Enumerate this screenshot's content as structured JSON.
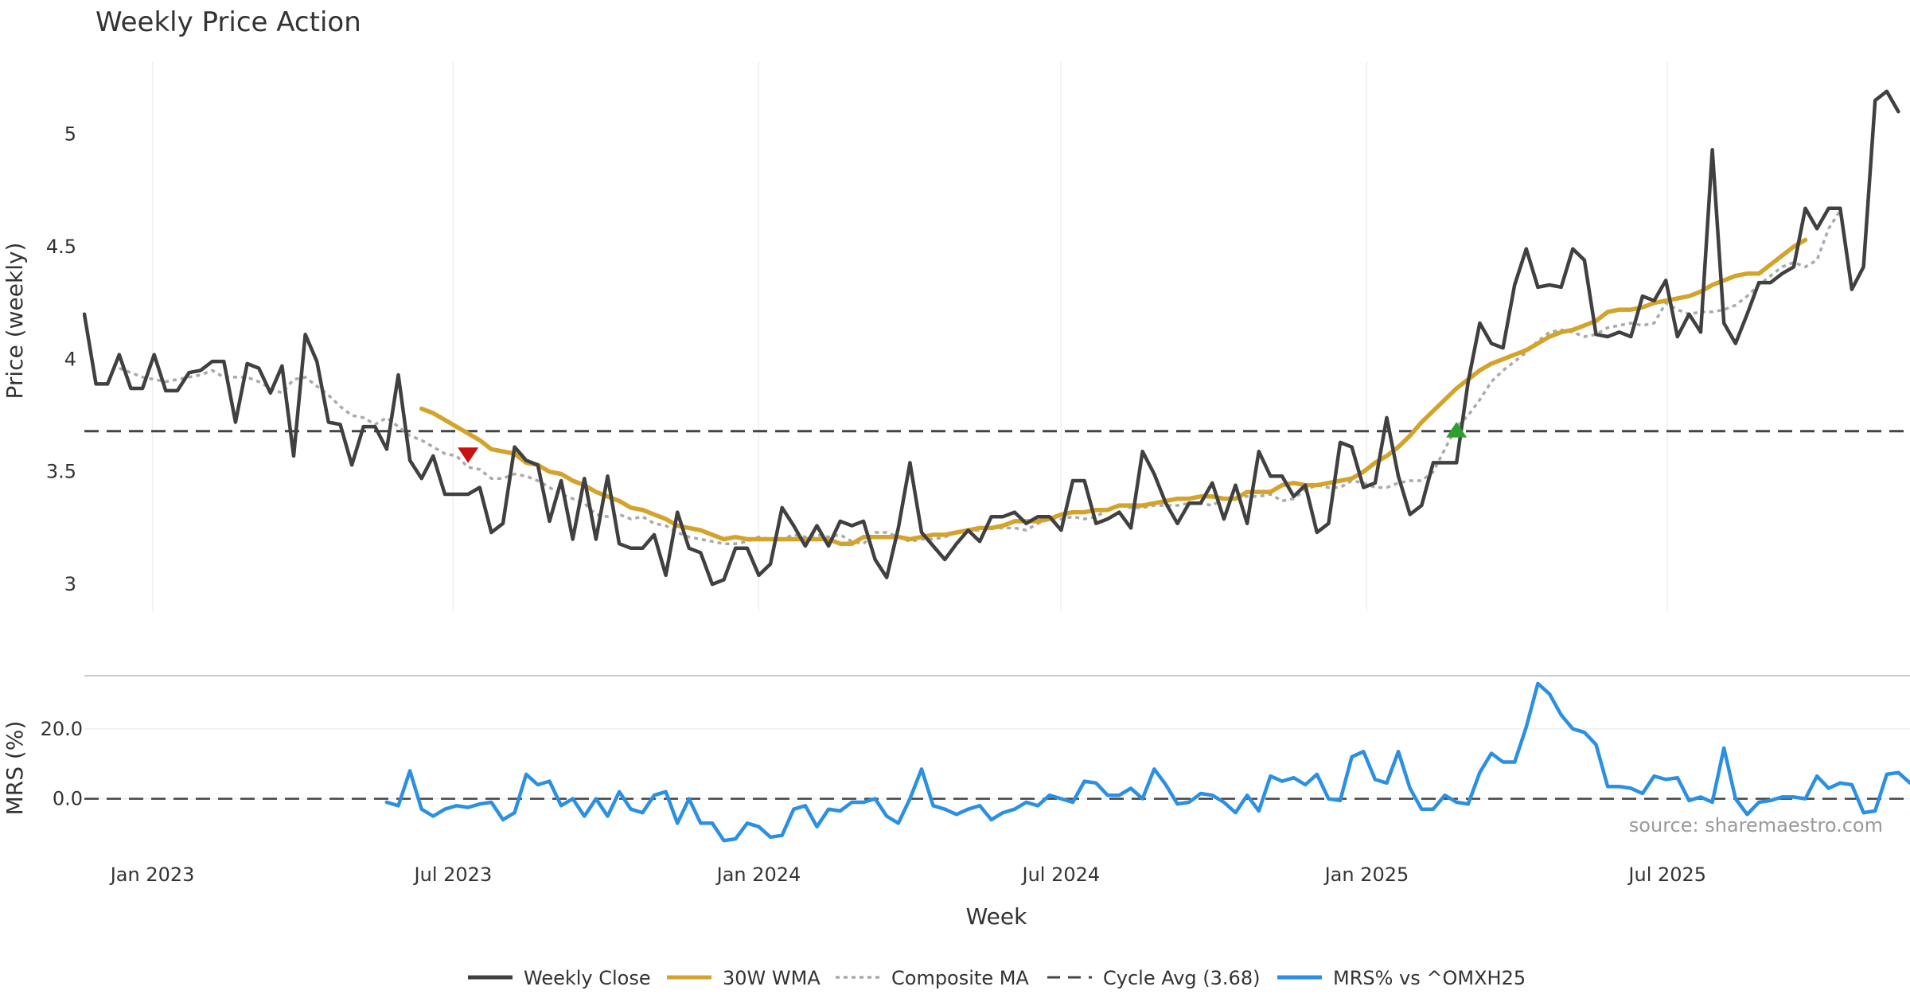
{
  "chart_data": [
    {
      "type": "line",
      "title": "Weekly Price Action",
      "xlabel": "Week",
      "ylabel": "Price (weekly)",
      "xlim": [
        "2022-11-21",
        "2025-11-24"
      ],
      "ylim": [
        2.88,
        5.32
      ],
      "yticks": [
        3,
        3.5,
        4,
        4.5,
        5
      ],
      "ytick_labels": [
        "3",
        "3.5",
        "4",
        "4.5",
        "5"
      ],
      "xticks": [
        {
          "date": "2023-01-01",
          "label": "Jan 2023"
        },
        {
          "date": "2023-07-01",
          "label": "Jul 2023"
        },
        {
          "date": "2024-01-01",
          "label": "Jan 2024"
        },
        {
          "date": "2024-07-01",
          "label": "Jul 2024"
        },
        {
          "date": "2025-01-01",
          "label": "Jan 2025"
        },
        {
          "date": "2025-07-01",
          "label": "Jul 2025"
        }
      ],
      "x_start": "2022-11-21",
      "x_step_days": 7,
      "series": [
        {
          "name": "Weekly Close",
          "color": "#404040",
          "values": [
            4.2,
            3.89,
            3.89,
            4.02,
            3.87,
            3.87,
            4.02,
            3.86,
            3.86,
            3.94,
            3.95,
            3.99,
            3.99,
            3.72,
            3.98,
            3.96,
            3.85,
            3.97,
            3.57,
            4.11,
            3.99,
            3.72,
            3.71,
            3.53,
            3.7,
            3.7,
            3.6,
            3.93,
            3.55,
            3.47,
            3.57,
            3.4,
            3.4,
            3.4,
            3.43,
            3.23,
            3.27,
            3.61,
            3.55,
            3.53,
            3.28,
            3.46,
            3.2,
            3.47,
            3.2,
            3.48,
            3.18,
            3.16,
            3.16,
            3.22,
            3.04,
            3.32,
            3.16,
            3.14,
            3.0,
            3.02,
            3.16,
            3.16,
            3.04,
            3.09,
            3.34,
            3.26,
            3.17,
            3.26,
            3.17,
            3.28,
            3.26,
            3.28,
            3.11,
            3.03,
            3.25,
            3.54,
            3.23,
            3.17,
            3.11,
            3.18,
            3.24,
            3.19,
            3.3,
            3.3,
            3.32,
            3.27,
            3.3,
            3.3,
            3.24,
            3.46,
            3.46,
            3.27,
            3.29,
            3.32,
            3.25,
            3.59,
            3.49,
            3.36,
            3.27,
            3.36,
            3.36,
            3.45,
            3.29,
            3.44,
            3.27,
            3.59,
            3.48,
            3.48,
            3.39,
            3.44,
            3.23,
            3.27,
            3.63,
            3.61,
            3.43,
            3.45,
            3.74,
            3.48,
            3.31,
            3.35,
            3.54,
            3.54,
            3.54,
            3.9,
            4.16,
            4.07,
            4.05,
            4.33,
            4.49,
            4.32,
            4.33,
            4.32,
            4.49,
            4.44,
            4.11,
            4.1,
            4.12,
            4.1,
            4.28,
            4.26,
            4.35,
            4.1,
            4.2,
            4.12,
            4.93,
            4.16,
            4.07,
            4.2,
            4.34,
            4.34,
            4.38,
            4.41,
            4.67,
            4.58,
            4.67,
            4.67,
            4.31,
            4.41,
            5.15,
            5.19,
            5.1
          ]
        },
        {
          "name": "30W WMA",
          "color": "#D4A32C",
          "start_index": 29,
          "values": [
            3.78,
            3.76,
            3.73,
            3.7,
            3.67,
            3.64,
            3.6,
            3.59,
            3.58,
            3.54,
            3.53,
            3.5,
            3.49,
            3.46,
            3.44,
            3.41,
            3.39,
            3.37,
            3.34,
            3.33,
            3.31,
            3.29,
            3.26,
            3.25,
            3.24,
            3.22,
            3.2,
            3.21,
            3.2,
            3.2,
            3.2,
            3.2,
            3.2,
            3.2,
            3.2,
            3.2,
            3.18,
            3.18,
            3.21,
            3.21,
            3.21,
            3.21,
            3.2,
            3.21,
            3.22,
            3.22,
            3.23,
            3.24,
            3.25,
            3.25,
            3.26,
            3.28,
            3.28,
            3.28,
            3.29,
            3.31,
            3.32,
            3.32,
            3.33,
            3.33,
            3.35,
            3.35,
            3.35,
            3.36,
            3.37,
            3.38,
            3.38,
            3.39,
            3.39,
            3.38,
            3.38,
            3.41,
            3.41,
            3.41,
            3.44,
            3.45,
            3.44,
            3.44,
            3.45,
            3.46,
            3.47,
            3.5,
            3.54,
            3.57,
            3.61,
            3.66,
            3.72,
            3.77,
            3.82,
            3.87,
            3.91,
            3.95,
            3.98,
            4.0,
            4.02,
            4.04,
            4.07,
            4.1,
            4.12,
            4.13,
            4.15,
            4.17,
            4.21,
            4.22,
            4.22,
            4.23,
            4.25,
            4.26,
            4.27,
            4.28,
            4.3,
            4.33,
            4.35,
            4.37,
            4.38,
            4.38,
            4.42,
            4.46,
            4.5,
            4.53
          ]
        },
        {
          "name": "Composite MA",
          "color": "#AAAAAA",
          "start_index": 3,
          "values": [
            3.96,
            3.94,
            3.92,
            3.91,
            3.9,
            3.91,
            3.92,
            3.93,
            3.95,
            3.92,
            3.92,
            3.92,
            3.9,
            3.87,
            3.85,
            3.91,
            3.92,
            3.88,
            3.84,
            3.79,
            3.75,
            3.74,
            3.71,
            3.74,
            3.7,
            3.66,
            3.64,
            3.61,
            3.58,
            3.57,
            3.52,
            3.51,
            3.47,
            3.47,
            3.49,
            3.48,
            3.46,
            3.43,
            3.4,
            3.38,
            3.36,
            3.31,
            3.3,
            3.31,
            3.29,
            3.3,
            3.27,
            3.26,
            3.23,
            3.21,
            3.2,
            3.19,
            3.18,
            3.18,
            3.19,
            3.21,
            3.2,
            3.2,
            3.22,
            3.21,
            3.22,
            3.21,
            3.22,
            3.19,
            3.18,
            3.23,
            3.23,
            3.21,
            3.19,
            3.2,
            3.2,
            3.21,
            3.23,
            3.24,
            3.24,
            3.25,
            3.25,
            3.25,
            3.24,
            3.27,
            3.29,
            3.29,
            3.3,
            3.29,
            3.3,
            3.33,
            3.35,
            3.34,
            3.34,
            3.35,
            3.35,
            3.35,
            3.36,
            3.36,
            3.35,
            3.38,
            3.39,
            3.39,
            3.39,
            3.4,
            3.37,
            3.38,
            3.42,
            3.44,
            3.43,
            3.43,
            3.46,
            3.45,
            3.43,
            3.43,
            3.45,
            3.46,
            3.46,
            3.5,
            3.6,
            3.7,
            3.75,
            3.82,
            3.9,
            3.95,
            3.99,
            4.03,
            4.08,
            4.12,
            4.13,
            4.12,
            4.1,
            4.11,
            4.14,
            4.15,
            4.16,
            4.15,
            4.16,
            4.25,
            4.22,
            4.2,
            4.21,
            4.21,
            4.22,
            4.24,
            4.28,
            4.33,
            4.37,
            4.41,
            4.43,
            4.41,
            4.44,
            4.58,
            4.66
          ]
        }
      ],
      "hlines": [
        {
          "name": "Cycle Avg (3.68)",
          "value": 3.68,
          "color": "#444444"
        }
      ],
      "markers": [
        {
          "type": "sell",
          "symbol": "triangle-down",
          "index": 33,
          "y": 3.58,
          "color": "#CC1111"
        },
        {
          "type": "buy",
          "symbol": "triangle-up",
          "index": 118,
          "y": 3.68,
          "color": "#2CA02C"
        }
      ]
    },
    {
      "type": "line",
      "ylabel": "MRS (%)",
      "ylim": [
        -14,
        35
      ],
      "yticks": [
        0,
        20
      ],
      "ytick_labels": [
        "0.0",
        "20.0"
      ],
      "series": [
        {
          "name": "MRS% vs ^OMXH25",
          "color": "#2B8FE3",
          "start_index": 26,
          "values": [
            -1,
            -2,
            8,
            -3,
            -5,
            -3,
            -2,
            -2.5,
            -1.5,
            -1,
            -6,
            -4,
            7,
            4,
            5,
            -2,
            0,
            -5,
            0,
            -5,
            2,
            -3,
            -4,
            1,
            2,
            -7,
            0,
            -7,
            -7,
            -12,
            -11.5,
            -7,
            -8,
            -11,
            -10.5,
            -3,
            -2,
            -8,
            -3,
            -3.5,
            -1,
            -1,
            0,
            -5,
            -7,
            0,
            8.5,
            -2,
            -3,
            -4.5,
            -3,
            -2,
            -6,
            -4,
            -3,
            -1,
            -2,
            1,
            0,
            -1,
            5,
            4.5,
            1,
            1,
            3,
            0,
            8.5,
            4,
            -1.5,
            -1,
            1.5,
            1,
            -1,
            -4,
            1,
            -3.5,
            6.5,
            5,
            6,
            4,
            7,
            0,
            -0.5,
            12,
            13.5,
            5.5,
            4.5,
            13.5,
            3,
            -3,
            -3,
            1,
            -1,
            -1.5,
            7.5,
            13,
            10.5,
            10.5,
            20.5,
            33,
            30,
            24,
            20,
            19,
            15.5,
            3.5,
            3.5,
            3,
            1.5,
            6.5,
            5.5,
            6,
            -0.5,
            0.5,
            -1,
            14.5,
            0,
            -4.5,
            -1,
            -0.5,
            0.5,
            0.5,
            0,
            6.5,
            3,
            4.5,
            4,
            -4,
            -3.5,
            7,
            7.5,
            4.5
          ]
        }
      ],
      "hlines": [
        {
          "name": "zero",
          "value": 0,
          "color": "#444444"
        }
      ],
      "annotation": "source: sharemaestro.com"
    }
  ],
  "legend": [
    {
      "label": "Weekly Close",
      "color": "#404040",
      "style": "solid"
    },
    {
      "label": "30W WMA",
      "color": "#D4A32C",
      "style": "solid"
    },
    {
      "label": "Composite MA",
      "color": "#AAAAAA",
      "style": "dotted"
    },
    {
      "label": "Cycle Avg (3.68)",
      "color": "#444444",
      "style": "dashed"
    },
    {
      "label": "MRS% vs ^OMXH25",
      "color": "#2B8FE3",
      "style": "solid"
    }
  ]
}
